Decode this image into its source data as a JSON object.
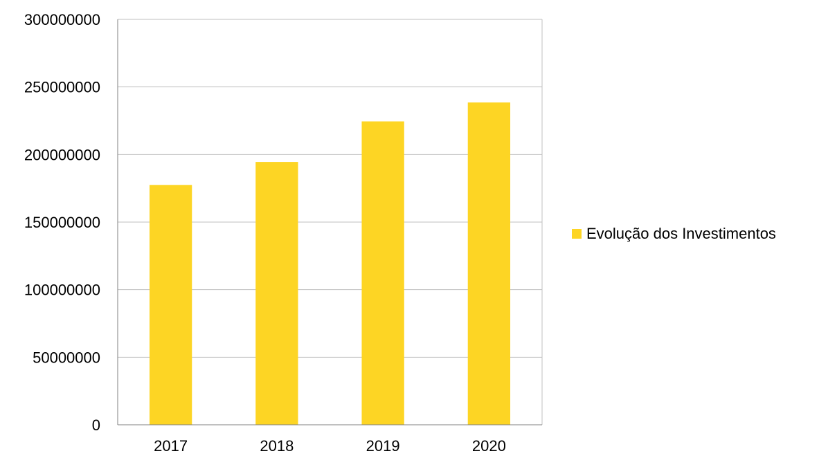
{
  "chart_data": {
    "type": "bar",
    "categories": [
      "2017",
      "2018",
      "2019",
      "2020"
    ],
    "series": [
      {
        "name": "Evolução dos Investimentos",
        "values": [
          177500000,
          194500000,
          224500000,
          238500000
        ],
        "color": "#FDD524"
      }
    ],
    "ylim": [
      0,
      300000000
    ],
    "yticks": [
      "0",
      "50000000",
      "100000000",
      "150000000",
      "200000000",
      "250000000",
      "300000000"
    ],
    "ytick_values": [
      0,
      50000000,
      100000000,
      150000000,
      200000000,
      250000000,
      300000000
    ],
    "grid": true,
    "legend_position": "right",
    "colors": {
      "grid": "#BFBFBF",
      "axis": "#808080",
      "bar": "#FDD524"
    }
  }
}
